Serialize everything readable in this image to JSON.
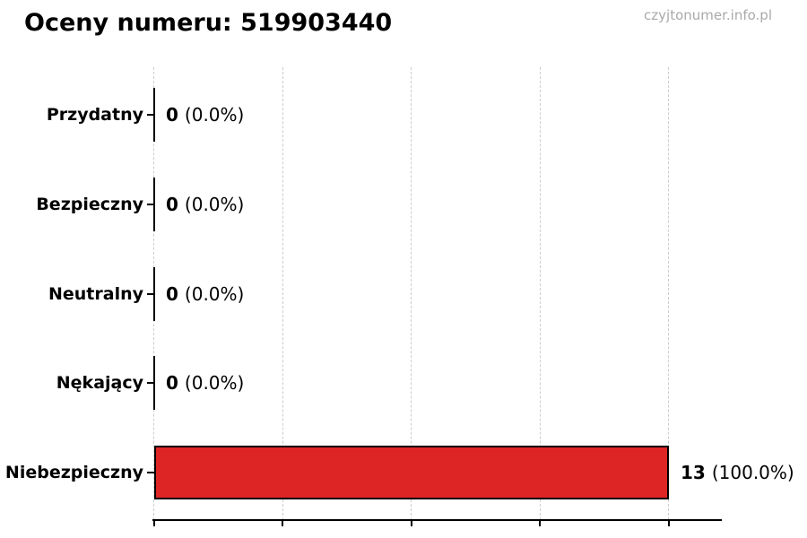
{
  "header": {
    "title": "Oceny numeru: 519903440",
    "watermark": "czyjtonumer.info.pl"
  },
  "chart_data": {
    "type": "bar",
    "orientation": "horizontal",
    "title": "Oceny numeru: 519903440",
    "categories": [
      "Przydatny",
      "Bezpieczny",
      "Neutralny",
      "Nękający",
      "Niebezpieczny"
    ],
    "values": [
      0,
      0,
      0,
      0,
      13
    ],
    "percent_labels": [
      "(0.0%)",
      "(0.0%)",
      "(0.0%)",
      "(0.0%)",
      "(100.0%)"
    ],
    "value_label_format": "count (percent)",
    "xlim": [
      0,
      13
    ],
    "x_tick_labels_visible": false,
    "gridlines": "vertical dashed at 0%, 25%, 50%, 75%, 100% of max",
    "legend": "none",
    "bar_color": "#dd2526",
    "bar_edge_color": "#000000",
    "background_color": "#ffffff"
  }
}
